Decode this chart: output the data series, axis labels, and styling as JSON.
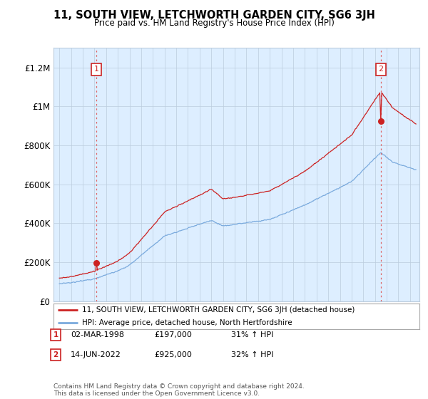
{
  "title": "11, SOUTH VIEW, LETCHWORTH GARDEN CITY, SG6 3JH",
  "subtitle": "Price paid vs. HM Land Registry's House Price Index (HPI)",
  "legend_line1": "11, SOUTH VIEW, LETCHWORTH GARDEN CITY, SG6 3JH (detached house)",
  "legend_line2": "HPI: Average price, detached house, North Hertfordshire",
  "annotation1_date": "02-MAR-1998",
  "annotation1_price": 197000,
  "annotation1_price_str": "£197,000",
  "annotation1_hpi": "31% ↑ HPI",
  "annotation2_date": "14-JUN-2022",
  "annotation2_price": 925000,
  "annotation2_price_str": "£925,000",
  "annotation2_hpi": "32% ↑ HPI",
  "footer": "Contains HM Land Registry data © Crown copyright and database right 2024.\nThis data is licensed under the Open Government Licence v3.0.",
  "red_color": "#cc2222",
  "blue_color": "#7aaadd",
  "chart_bg": "#ddeeff",
  "outer_bg": "#ffffff",
  "grid_color": "#bbccdd",
  "ann_box_border": "#cc2222",
  "ann_box_fill": "#ffffff",
  "vline_color": "#dd6666",
  "ytick_labels": [
    "£0",
    "£200K",
    "£400K",
    "£600K",
    "£800K",
    "£1M",
    "£1.2M"
  ],
  "yticks": [
    0,
    200000,
    400000,
    600000,
    800000,
    1000000,
    1200000
  ],
  "ylim": [
    0,
    1300000
  ],
  "xlim_start": 1994.5,
  "xlim_end": 2025.8,
  "sale1_t": 1998.17,
  "sale2_t": 2022.45,
  "sale1_price": 197000,
  "sale2_price": 925000
}
